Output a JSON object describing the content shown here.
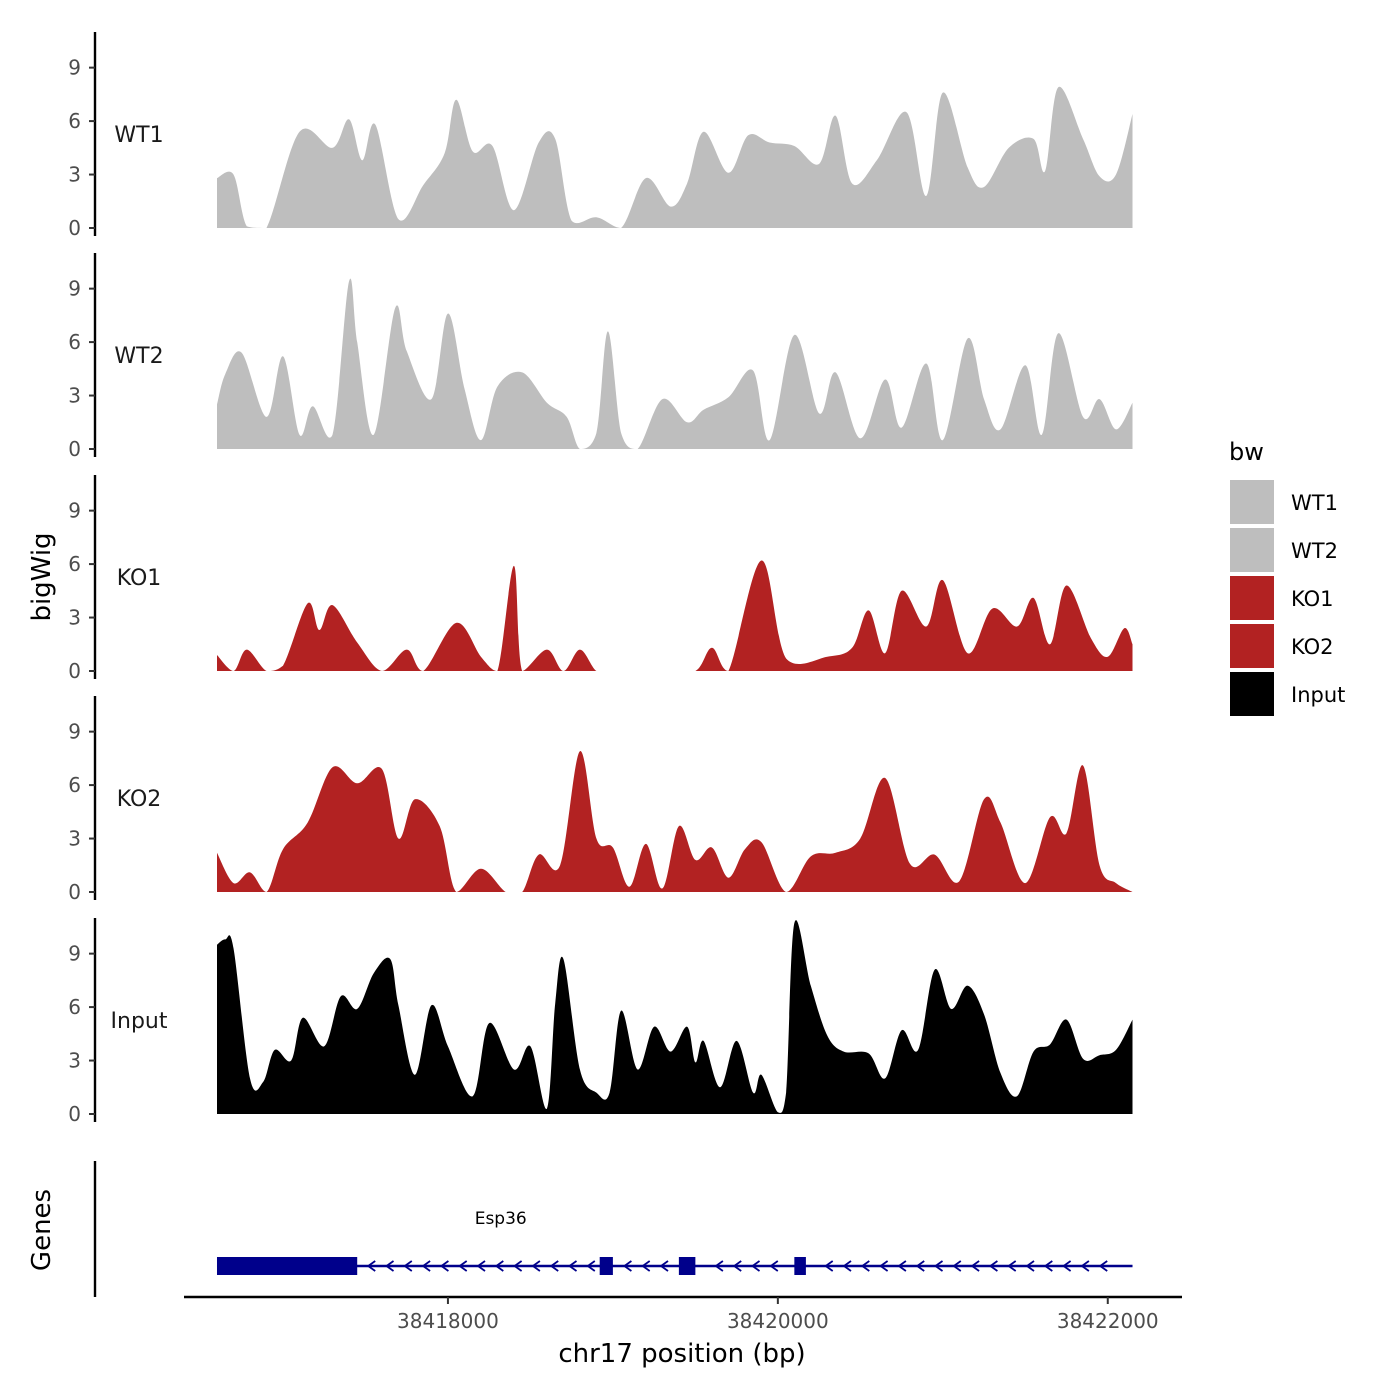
{
  "chart_data": {
    "type": "area",
    "y_axis_title": "bigWig",
    "genes_axis_title": "Genes",
    "x_axis_title": "chr17 position (bp)",
    "xlim": [
      38416400,
      38422450
    ],
    "ylim": [
      0,
      11
    ],
    "y_ticks": [
      "0",
      "3",
      "6",
      "9"
    ],
    "x_ticks": [
      {
        "value": 38418000,
        "label": "38418000"
      },
      {
        "value": 38420000,
        "label": "38420000"
      },
      {
        "value": 38422000,
        "label": "38422000"
      }
    ],
    "legend": {
      "title": "bw",
      "items": [
        {
          "label": "WT1",
          "color": "#BEBEBE"
        },
        {
          "label": "WT2",
          "color": "#BEBEBE"
        },
        {
          "label": "KO1",
          "color": "#B22222"
        },
        {
          "label": "KO2",
          "color": "#B22222"
        },
        {
          "label": "Input",
          "color": "#000000"
        }
      ]
    },
    "tracks": [
      {
        "name": "WT1",
        "color": "#BEBEBE",
        "x": [
          38416600,
          38416700,
          38416780,
          38416900,
          38417100,
          38417300,
          38417400,
          38417480,
          38417560,
          38417700,
          38417850,
          38417980,
          38418050,
          38418150,
          38418270,
          38418400,
          38418550,
          38418650,
          38418750,
          38418900,
          38419050,
          38419200,
          38419350,
          38419450,
          38419550,
          38419700,
          38419820,
          38419950,
          38420100,
          38420250,
          38420350,
          38420450,
          38420600,
          38420780,
          38420900,
          38421000,
          38421150,
          38421250,
          38421400,
          38421550,
          38421620,
          38421700,
          38421850,
          38421950,
          38422050,
          38422150
        ],
        "y": [
          2.8,
          3,
          0.1,
          0,
          5.4,
          4.5,
          6.1,
          3.8,
          5.8,
          0.5,
          2.4,
          4.2,
          7.2,
          4.3,
          4.6,
          1,
          4.8,
          5,
          0.4,
          0.6,
          0,
          2.8,
          1.2,
          2.5,
          5.4,
          3.1,
          5.2,
          4.8,
          4.6,
          3.6,
          6.3,
          2.5,
          3.8,
          6.5,
          1.8,
          7.6,
          3.4,
          2.3,
          4.5,
          5,
          3.2,
          7.9,
          5,
          2.9,
          3,
          6.4
        ]
      },
      {
        "name": "WT2",
        "color": "#BEBEBE",
        "x": [
          38416600,
          38416650,
          38416750,
          38416900,
          38417000,
          38417100,
          38417180,
          38417300,
          38417400,
          38417450,
          38417550,
          38417680,
          38417750,
          38417900,
          38418000,
          38418100,
          38418200,
          38418300,
          38418450,
          38418600,
          38418720,
          38418800,
          38418900,
          38418970,
          38419050,
          38419150,
          38419300,
          38419450,
          38419550,
          38419700,
          38419850,
          38419950,
          38420100,
          38420250,
          38420350,
          38420500,
          38420650,
          38420750,
          38420900,
          38421000,
          38421150,
          38421250,
          38421350,
          38421500,
          38421600,
          38421700,
          38421850,
          38421950,
          38422050,
          38422150
        ],
        "y": [
          2.5,
          4.2,
          5.4,
          1.8,
          5.2,
          0.8,
          2.4,
          0.8,
          9.4,
          6,
          0.8,
          7.9,
          5.5,
          2.8,
          7.6,
          3.4,
          0.5,
          3.5,
          4.3,
          2.6,
          1.8,
          0,
          0.9,
          6.6,
          0.9,
          0,
          2.8,
          1.5,
          2.2,
          2.9,
          4.4,
          0.5,
          6.4,
          2,
          4.3,
          0.6,
          3.9,
          1.2,
          4.8,
          0.5,
          6.2,
          2.8,
          1.1,
          4.7,
          0.8,
          6.5,
          1.8,
          2.8,
          1.1,
          2.6
        ]
      },
      {
        "name": "KO1",
        "color": "#B22222",
        "x": [
          38416600,
          38416700,
          38416780,
          38416900,
          38417000,
          38417150,
          38417220,
          38417300,
          38417450,
          38417600,
          38417750,
          38417850,
          38418050,
          38418200,
          38418300,
          38418400,
          38418450,
          38418600,
          38418700,
          38418800,
          38418900,
          38419000,
          38419100,
          38419200,
          38419250,
          38419300,
          38419500,
          38419600,
          38419700,
          38419900,
          38420050,
          38420300,
          38420450,
          38420550,
          38420650,
          38420750,
          38420900,
          38421000,
          38421150,
          38421300,
          38421450,
          38421550,
          38421650,
          38421750,
          38421900,
          38422000,
          38422100,
          38422150
        ],
        "y": [
          0.9,
          0,
          1.2,
          0,
          0.3,
          3.8,
          2.3,
          3.7,
          1.6,
          0,
          1.2,
          0,
          2.7,
          0.8,
          0,
          5.9,
          0,
          1.2,
          0,
          1.2,
          0,
          0,
          0,
          0,
          0,
          0,
          0,
          1.3,
          0,
          6.2,
          0.7,
          0.8,
          1.3,
          3.4,
          1,
          4.5,
          2.5,
          5.1,
          1,
          3.5,
          2.5,
          4.1,
          1.5,
          4.8,
          1.8,
          0.8,
          2.4,
          1.5
        ]
      },
      {
        "name": "KO2",
        "color": "#B22222",
        "x": [
          38416600,
          38416700,
          38416800,
          38416900,
          38417000,
          38417150,
          38417300,
          38417450,
          38417600,
          38417700,
          38417800,
          38417950,
          38418050,
          38418200,
          38418350,
          38418450,
          38418550,
          38418680,
          38418800,
          38418900,
          38419000,
          38419100,
          38419200,
          38419300,
          38419400,
          38419500,
          38419600,
          38419700,
          38419800,
          38419900,
          38420050,
          38420200,
          38420350,
          38420500,
          38420650,
          38420800,
          38420950,
          38421100,
          38421250,
          38421350,
          38421500,
          38421650,
          38421750,
          38421850,
          38421950,
          38422050,
          38422150
        ],
        "y": [
          2.2,
          0.5,
          1.1,
          0,
          2.4,
          3.9,
          7,
          6.1,
          6.9,
          3,
          5.2,
          3.7,
          0,
          1.3,
          0,
          0,
          2.1,
          1.5,
          7.9,
          3,
          2.5,
          0.3,
          2.7,
          0.2,
          3.7,
          1.8,
          2.5,
          0.8,
          2.4,
          2.8,
          0,
          2,
          2.2,
          3,
          6.4,
          1.6,
          2.1,
          0.6,
          5.2,
          3.9,
          0.5,
          4.2,
          3.3,
          7.1,
          1.5,
          0.5,
          0
        ]
      },
      {
        "name": "Input",
        "color": "#000000",
        "x": [
          38416600,
          38416650,
          38416700,
          38416800,
          38416880,
          38416950,
          38417050,
          38417120,
          38417250,
          38417350,
          38417450,
          38417550,
          38417650,
          38417700,
          38417800,
          38417900,
          38418000,
          38418150,
          38418250,
          38418400,
          38418500,
          38418600,
          38418650,
          38418700,
          38418800,
          38418900,
          38418980,
          38419050,
          38419150,
          38419250,
          38419350,
          38419450,
          38419500,
          38419550,
          38419650,
          38419750,
          38419850,
          38419900,
          38420000,
          38420050,
          38420100,
          38420200,
          38420300,
          38420400,
          38420550,
          38420650,
          38420750,
          38420850,
          38420950,
          38421050,
          38421150,
          38421250,
          38421350,
          38421450,
          38421550,
          38421650,
          38421750,
          38421850,
          38421950,
          38422050,
          38422150
        ],
        "y": [
          9.5,
          9.8,
          9.3,
          2,
          1.8,
          3.6,
          3,
          5.4,
          3.8,
          6.6,
          5.9,
          7.9,
          8.7,
          6.1,
          2.2,
          6.1,
          3.8,
          1,
          5.1,
          2.5,
          3.8,
          0.3,
          6.2,
          8.7,
          2.5,
          1.2,
          1.2,
          5.8,
          2.5,
          4.9,
          3.5,
          4.9,
          2.9,
          4.1,
          1.5,
          4.1,
          1.2,
          2.2,
          0.1,
          1.2,
          10.7,
          7.2,
          4.4,
          3.5,
          3.4,
          2,
          4.7,
          3.6,
          8.1,
          5.9,
          7.2,
          5.6,
          2.3,
          1,
          3.5,
          3.9,
          5.3,
          3.1,
          3.3,
          3.6,
          5.3
        ]
      }
    ],
    "gene": {
      "name": "Esp36",
      "color": "#00008B",
      "start": 38416600,
      "end": 38422150,
      "exons": [
        {
          "start": 38416600,
          "end": 38417450
        },
        {
          "start": 38418920,
          "end": 38419000
        },
        {
          "start": 38419400,
          "end": 38419500
        },
        {
          "start": 38420100,
          "end": 38420170
        }
      ],
      "label_position": 38418320
    }
  }
}
